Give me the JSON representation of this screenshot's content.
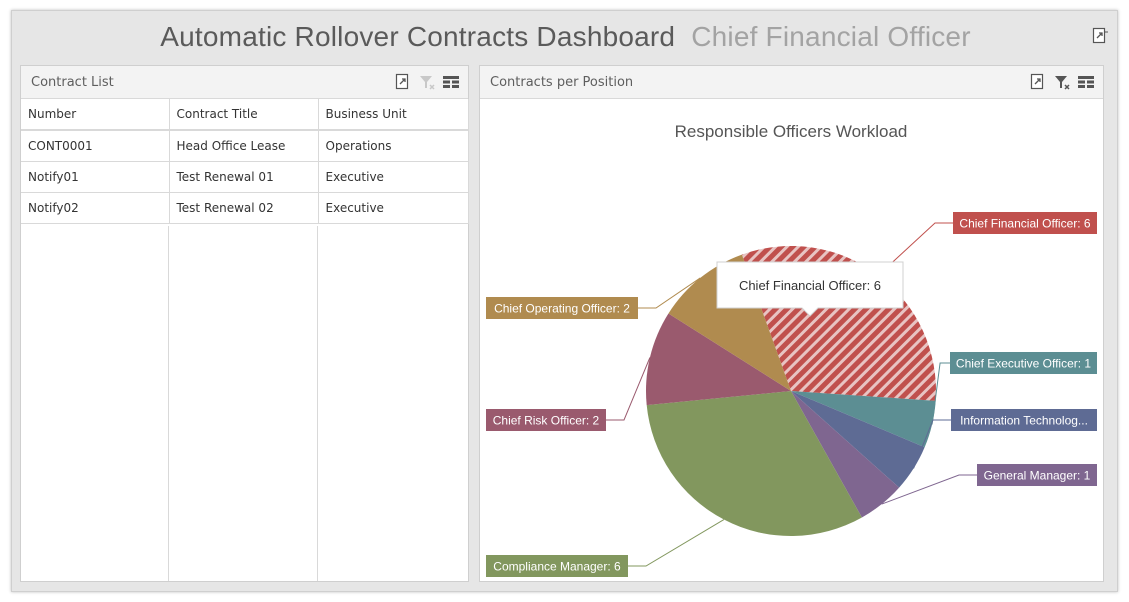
{
  "header": {
    "title": "Automatic Rollover Contracts Dashboard",
    "subtitle": "Chief Financial Officer"
  },
  "contract_list": {
    "title": "Contract List",
    "columns": [
      "Number",
      "Contract Title",
      "Business Unit"
    ],
    "rows": [
      [
        "CONT0001",
        "Head Office Lease",
        "Operations"
      ],
      [
        "Notify01",
        "Test Renewal 01",
        "Executive"
      ],
      [
        "Notify02",
        "Test Renewal 02",
        "Executive"
      ]
    ]
  },
  "chart_panel": {
    "title": "Contracts per Position"
  },
  "chart_data": {
    "type": "pie",
    "title": "Responsible Officers Workload",
    "series": [
      {
        "name": "Chief Financial Officer",
        "value": 6,
        "label": "Chief Financial Officer: 6",
        "color": "#c0504d",
        "highlighted": true
      },
      {
        "name": "Chief Executive Officer",
        "value": 1,
        "label": "Chief Executive Officer: 1",
        "color": "#5c8e93"
      },
      {
        "name": "Information Technolog...",
        "value": 1,
        "label": "Information Technolog...",
        "color": "#5e6b94"
      },
      {
        "name": "General Manager",
        "value": 1,
        "label": "General Manager: 1",
        "color": "#7f6690"
      },
      {
        "name": "Compliance Manager",
        "value": 6,
        "label": "Compliance Manager: 6",
        "color": "#82975e"
      },
      {
        "name": "Chief Risk Officer",
        "value": 2,
        "label": "Chief Risk Officer: 2",
        "color": "#9a5a6e"
      },
      {
        "name": "Chief Operating Officer",
        "value": 2,
        "label": "Chief Operating Officer: 2",
        "color": "#b08b4f"
      }
    ],
    "tooltip": "Chief Financial Officer: 6",
    "legend": "none"
  }
}
